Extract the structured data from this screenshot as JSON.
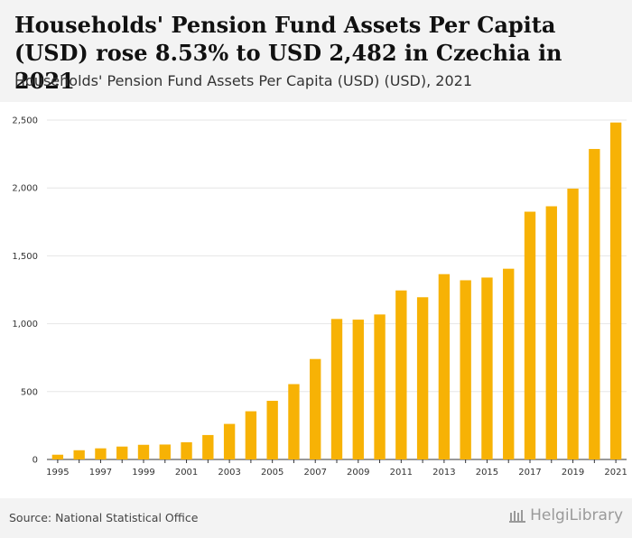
{
  "header": {
    "title": "Households' Pension Fund Assets Per Capita (USD) rose 8.53% to USD 2,482 in Czechia in 2021",
    "subtitle": "Households' Pension Fund Assets Per Capita (USD) (USD), 2021"
  },
  "footer": {
    "source": "Source: National Statistical Office",
    "logo_text": "HelgiLibrary"
  },
  "colors": {
    "bar": "#f7b205",
    "grid": "#e6e6e6",
    "axis": "#333333"
  },
  "chart_data": {
    "type": "bar",
    "title": "Households' Pension Fund Assets Per Capita (USD) (USD), 2021",
    "xlabel": "",
    "ylabel": "",
    "ylim": [
      0,
      2500
    ],
    "yticks": [
      0,
      500,
      1000,
      1500,
      2000,
      2500
    ],
    "ytick_labels": [
      "0",
      "500",
      "1,000",
      "1,500",
      "2,000",
      "2,500"
    ],
    "categories": [
      "1995",
      "1996",
      "1997",
      "1998",
      "1999",
      "2000",
      "2001",
      "2002",
      "2003",
      "2004",
      "2005",
      "2006",
      "2007",
      "2008",
      "2009",
      "2010",
      "2011",
      "2012",
      "2013",
      "2014",
      "2015",
      "2016",
      "2017",
      "2018",
      "2019",
      "2020",
      "2021"
    ],
    "xtick_labels": [
      "1995",
      "",
      "1997",
      "",
      "1999",
      "",
      "2001",
      "",
      "2003",
      "",
      "2005",
      "",
      "2007",
      "",
      "2009",
      "",
      "2011",
      "",
      "2013",
      "",
      "2015",
      "",
      "2017",
      "",
      "2019",
      "",
      "2021"
    ],
    "values": [
      35,
      68,
      82,
      95,
      108,
      110,
      127,
      180,
      262,
      355,
      432,
      555,
      740,
      1035,
      1030,
      1068,
      1245,
      1195,
      1365,
      1320,
      1340,
      1405,
      1825,
      1865,
      1995,
      2287,
      2482
    ]
  }
}
